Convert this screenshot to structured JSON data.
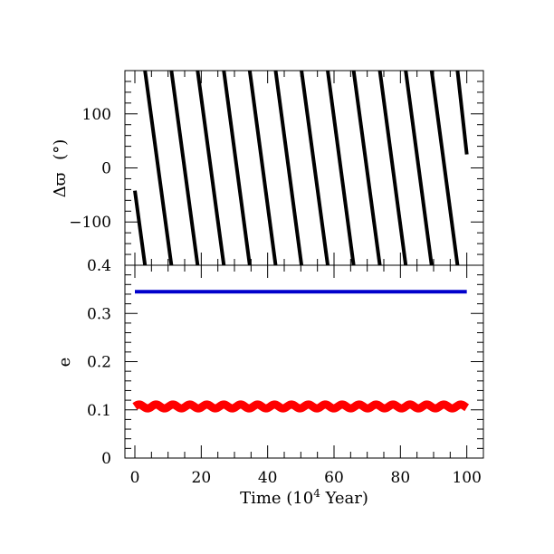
{
  "chart_data": [
    {
      "type": "scatter",
      "panel": "top",
      "ylabel_main": "Δϖ",
      "ylabel_unit": "(°)",
      "ylim": [
        -180,
        180
      ],
      "xlim": [
        -3,
        105
      ],
      "y_tick_labels": [
        {
          "value": 100,
          "label": "100"
        },
        {
          "value": 0,
          "label": "0"
        },
        {
          "value": -100,
          "label": "−100"
        }
      ],
      "series": [
        {
          "color": "#000000",
          "segments": [
            {
              "x_start": 0.0,
              "y_start": -42,
              "x_end": 3.05,
              "y_end": -180
            },
            {
              "x_start": 3.05,
              "y_start": 180,
              "x_end": 11.0,
              "y_end": -180
            },
            {
              "x_start": 11.0,
              "y_start": 180,
              "x_end": 18.9,
              "y_end": -180
            },
            {
              "x_start": 18.9,
              "y_start": 180,
              "x_end": 26.8,
              "y_end": -180
            },
            {
              "x_start": 26.8,
              "y_start": 180,
              "x_end": 34.6,
              "y_end": -180
            },
            {
              "x_start": 34.6,
              "y_start": 180,
              "x_end": 42.4,
              "y_end": -180
            },
            {
              "x_start": 42.4,
              "y_start": 180,
              "x_end": 50.2,
              "y_end": -180
            },
            {
              "x_start": 50.2,
              "y_start": 180,
              "x_end": 58.1,
              "y_end": -180
            },
            {
              "x_start": 58.1,
              "y_start": 180,
              "x_end": 65.9,
              "y_end": -180
            },
            {
              "x_start": 65.9,
              "y_start": 180,
              "x_end": 73.8,
              "y_end": -180
            },
            {
              "x_start": 73.8,
              "y_start": 180,
              "x_end": 81.6,
              "y_end": -180
            },
            {
              "x_start": 81.6,
              "y_start": 180,
              "x_end": 89.4,
              "y_end": -180
            },
            {
              "x_start": 89.4,
              "y_start": 180,
              "x_end": 97.2,
              "y_end": -180
            },
            {
              "x_start": 97.2,
              "y_start": 180,
              "x_end": 100.0,
              "y_end": 25
            }
          ]
        }
      ]
    },
    {
      "type": "line",
      "panel": "bottom",
      "ylabel": "e",
      "xlabel_prefix": "Time (10",
      "xlabel_exp": "4",
      "xlabel_suffix": " Year)",
      "ylim": [
        0,
        0.4
      ],
      "xlim": [
        -3,
        105
      ],
      "x_tick_labels": [
        {
          "value": 0,
          "label": "0"
        },
        {
          "value": 20,
          "label": "20"
        },
        {
          "value": 40,
          "label": "40"
        },
        {
          "value": 60,
          "label": "60"
        },
        {
          "value": 80,
          "label": "80"
        },
        {
          "value": 100,
          "label": "100"
        }
      ],
      "y_tick_labels": [
        {
          "value": 0,
          "label": "0"
        },
        {
          "value": 0.1,
          "label": "0.1"
        },
        {
          "value": 0.2,
          "label": "0.2"
        },
        {
          "value": 0.3,
          "label": "0.3"
        },
        {
          "value": 0.4,
          "label": "0.4"
        }
      ],
      "series": [
        {
          "color": "#0000cc",
          "x": [
            0,
            100
          ],
          "y": [
            0.345,
            0.345
          ]
        },
        {
          "color": "#ff0000",
          "mean": 0.107,
          "amplitude": 0.004,
          "period": 5.1,
          "x_range": [
            0,
            100
          ]
        }
      ]
    }
  ]
}
